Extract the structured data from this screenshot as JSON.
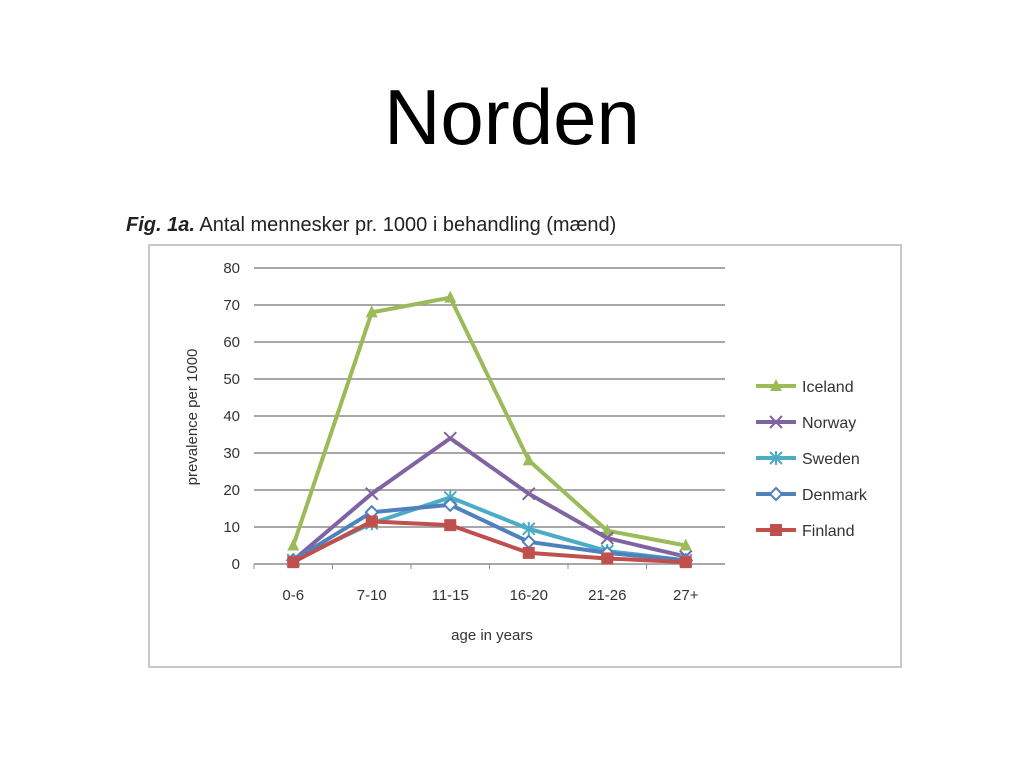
{
  "slide": {
    "title": "Norden"
  },
  "figure": {
    "label": "Fig. 1a.",
    "caption": "Antal mennesker pr. 1000 i behandling (mænd)"
  },
  "chart_data": {
    "type": "line",
    "title": "",
    "xlabel": "age in years",
    "ylabel": "prevalence per 1000",
    "ylim": [
      0,
      80
    ],
    "yticks": [
      "0",
      "10",
      "20",
      "30",
      "40",
      "50",
      "60",
      "70",
      "80"
    ],
    "categories": [
      "0-6",
      "7-10",
      "11-15",
      "16-20",
      "21-26",
      "27+"
    ],
    "grid": true,
    "legend_position": "right",
    "series": [
      {
        "name": "Iceland",
        "values": [
          5,
          68,
          72,
          28,
          9,
          5
        ],
        "color": "#9bbb59",
        "marker": "triangle"
      },
      {
        "name": "Norway",
        "values": [
          1,
          19,
          34,
          19,
          7,
          2
        ],
        "color": "#8064a2",
        "marker": "x"
      },
      {
        "name": "Sweden",
        "values": [
          1,
          11,
          18,
          9.5,
          3.5,
          1
        ],
        "color": "#4bacc6",
        "marker": "star"
      },
      {
        "name": "Denmark",
        "values": [
          1,
          14,
          16,
          6,
          3,
          1
        ],
        "color": "#4f81bd",
        "marker": "diamond"
      },
      {
        "name": "Finland",
        "values": [
          0.5,
          11.5,
          10.5,
          3,
          1.5,
          0.5
        ],
        "color": "#c0504d",
        "marker": "square"
      }
    ]
  }
}
